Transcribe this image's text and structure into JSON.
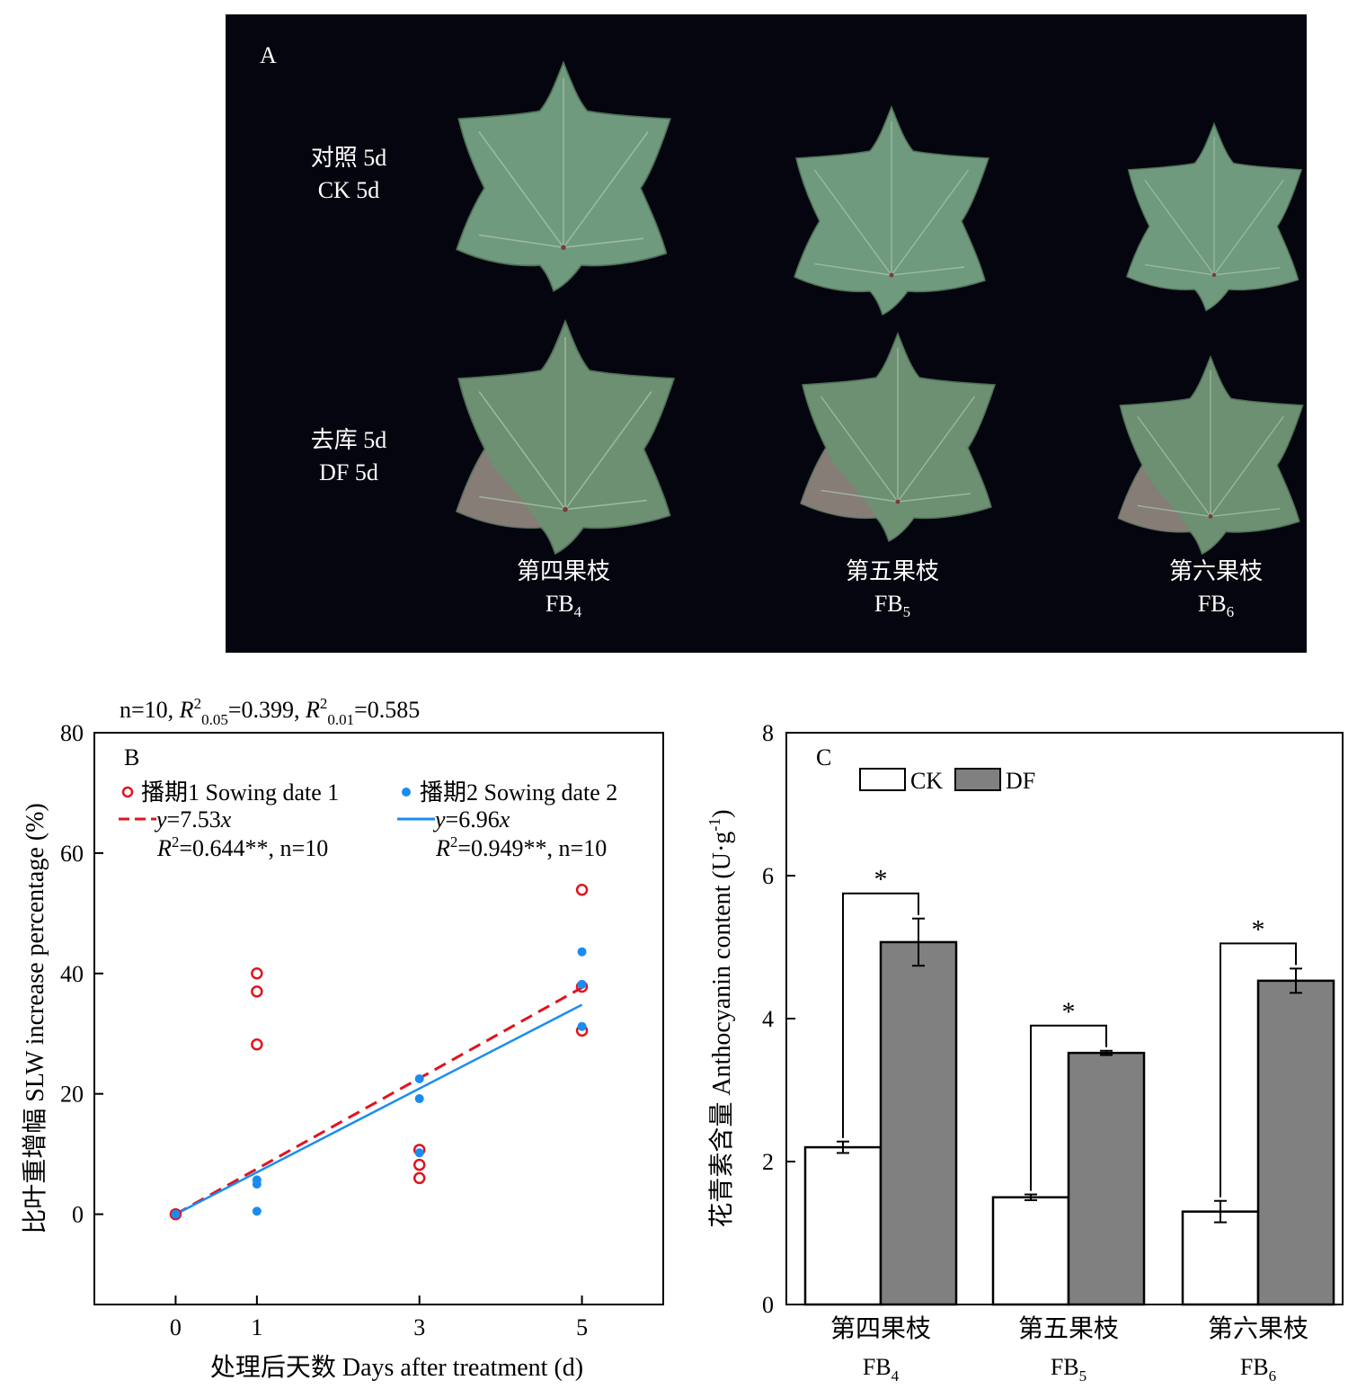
{
  "panel_a": {
    "letter": "A",
    "rows": [
      {
        "cn": "对照 5d",
        "en": "CK 5d"
      },
      {
        "cn": "去库 5d",
        "en": "DF 5d"
      }
    ],
    "columns": [
      {
        "cn": "第四果枝",
        "en_base": "FB",
        "en_sub": "4"
      },
      {
        "cn": "第五果枝",
        "en_base": "FB",
        "en_sub": "5"
      },
      {
        "cn": "第六果枝",
        "en_base": "FB",
        "en_sub": "6"
      }
    ],
    "colors": {
      "background": "#05050f",
      "leaf_ck": "#6f9a7d",
      "leaf_df": "#6d8f72",
      "leaf_df_tint": "#9a6f7a",
      "vein": "#a9c2ac"
    }
  },
  "chart_data": [
    {
      "type": "scatter",
      "panel": "B",
      "header": {
        "prefix": "n=10, ",
        "r2a_sub": "0.05",
        "r2a_val": "=0.399, ",
        "r2b_sub": "0.01",
        "r2b_val": "=0.585"
      },
      "xlabel": "处理后天数 Days after treatment (d)",
      "ylabel": "比叶重增幅 SLW increase percentage (%)",
      "xlim": [
        -1,
        6
      ],
      "ylim": [
        -15,
        80
      ],
      "xticks": [
        0,
        1,
        3,
        5
      ],
      "yticks": [
        0,
        20,
        40,
        60,
        80
      ],
      "series": [
        {
          "name": "播期1 Sowing date 1",
          "marker": "open-circle",
          "color": "#e0141e",
          "points": [
            [
              0,
              0
            ],
            [
              1,
              40
            ],
            [
              1,
              37
            ],
            [
              1,
              28.2
            ],
            [
              3,
              10.7
            ],
            [
              3,
              8.2
            ],
            [
              3,
              6
            ],
            [
              5,
              53.9
            ],
            [
              5,
              37.8
            ],
            [
              5,
              30.5
            ]
          ],
          "fit": {
            "slope": 7.53,
            "equation_lhs": "y",
            "equation_rhs": "=7.53",
            "equation_var": "x",
            "r2_text": "=0.644**, n=10",
            "style": "dashed"
          }
        },
        {
          "name": "播期2 Sowing date 2",
          "marker": "filled-circle",
          "color": "#1a8cf0",
          "points": [
            [
              0,
              0
            ],
            [
              1,
              5.7
            ],
            [
              1,
              5
            ],
            [
              1,
              0.5
            ],
            [
              3,
              22.5
            ],
            [
              3,
              19.2
            ],
            [
              3,
              10.2
            ],
            [
              5,
              43.6
            ],
            [
              5,
              38.2
            ],
            [
              5,
              31.2
            ]
          ],
          "fit": {
            "slope": 6.96,
            "equation_lhs": "y",
            "equation_rhs": "=6.96",
            "equation_var": "x",
            "r2_text": "=0.949**, n=10",
            "style": "solid"
          }
        }
      ],
      "legend_position": "top"
    },
    {
      "type": "bar",
      "panel": "C",
      "ylabel": "花青素含量 Anthocyanin content (U·g-1)",
      "ylabel_main": "花青素含量 Anthocyanin content (U·g",
      "ylabel_sup": "-1",
      "ylabel_end": ")",
      "ylim": [
        0,
        8
      ],
      "yticks": [
        0,
        2,
        4,
        6,
        8
      ],
      "categories": [
        {
          "cn": "第四果枝",
          "en_base": "FB",
          "en_sub": "4"
        },
        {
          "cn": "第五果枝",
          "en_base": "FB",
          "en_sub": "5"
        },
        {
          "cn": "第六果枝",
          "en_base": "FB",
          "en_sub": "6"
        }
      ],
      "series": [
        {
          "name": "CK",
          "color": "#ffffff",
          "values": [
            2.2,
            1.5,
            1.3
          ],
          "errors": [
            0.08,
            0.04,
            0.15
          ]
        },
        {
          "name": "DF",
          "color": "#808080",
          "values": [
            5.07,
            3.52,
            4.53
          ],
          "errors": [
            0.33,
            0.03,
            0.17
          ]
        }
      ],
      "significance": [
        "*",
        "*",
        "*"
      ],
      "legend_position": "top-left"
    }
  ]
}
